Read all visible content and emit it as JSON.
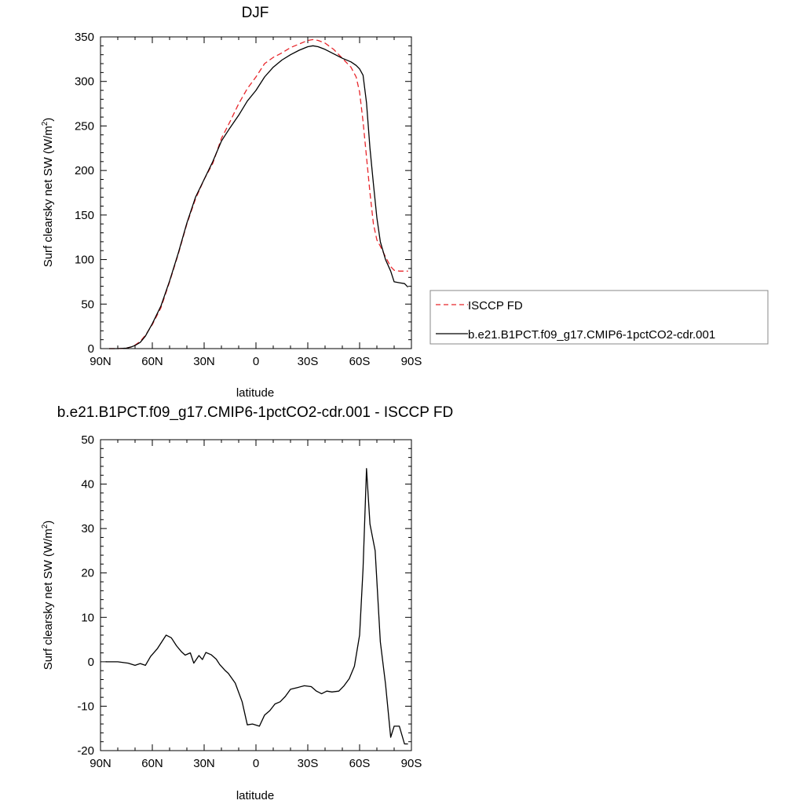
{
  "chart_data": [
    {
      "type": "line",
      "title": "DJF",
      "xlabel": "latitude",
      "ylabel": "Surf clearsky net SW (W/m",
      "ylabel_sup": "2",
      "ylabel_end": ")",
      "xlim": [
        90,
        -90
      ],
      "ylim": [
        0,
        350
      ],
      "xticks": [
        90,
        60,
        30,
        0,
        -30,
        -60,
        -90
      ],
      "xtick_labels": [
        "90N",
        "60N",
        "30N",
        "0",
        "30S",
        "60S",
        "90S"
      ],
      "yticks": [
        0,
        50,
        100,
        150,
        200,
        250,
        300,
        350
      ],
      "ytick_labels": [
        "0",
        "50",
        "100",
        "150",
        "200",
        "250",
        "300",
        "350"
      ],
      "legend": "right",
      "grid": false,
      "series": [
        {
          "name": "ISCCP FD",
          "color": "#e8262b",
          "dash": "dashed",
          "x": [
            85,
            80,
            75,
            72,
            70,
            67,
            64,
            60,
            55,
            50,
            45,
            40,
            35,
            30,
            25,
            20,
            15,
            10,
            5,
            0,
            -5,
            -10,
            -15,
            -20,
            -25,
            -30,
            -33,
            -36,
            -40,
            -45,
            -50,
            -55,
            -58,
            -60,
            -62,
            -64,
            -66,
            -68,
            -70,
            -72,
            -75,
            -78,
            -80,
            -83,
            -86,
            -88
          ],
          "y": [
            0,
            0,
            0.5,
            2,
            4,
            8,
            15,
            27,
            46,
            75,
            106,
            140,
            168,
            190,
            208,
            236,
            255,
            275,
            292,
            305,
            320,
            327,
            332,
            338,
            342,
            346,
            347,
            346,
            343,
            336,
            326,
            316,
            305,
            288,
            255,
            215,
            175,
            140,
            122,
            115,
            103,
            92,
            88,
            87,
            87,
            87
          ]
        },
        {
          "name": "b.e21.B1PCT.f09_g17.CMIP6-1pctCO2-cdr.001",
          "color": "#000000",
          "dash": "solid",
          "x": [
            85,
            80,
            75,
            72,
            70,
            67,
            64,
            60,
            55,
            50,
            45,
            40,
            35,
            30,
            25,
            20,
            15,
            10,
            5,
            0,
            -5,
            -10,
            -15,
            -20,
            -25,
            -30,
            -33,
            -36,
            -40,
            -45,
            -50,
            -55,
            -58,
            -60,
            -62,
            -64,
            -66,
            -68,
            -70,
            -72,
            -75,
            -78,
            -80,
            -83,
            -86,
            -88
          ],
          "y": [
            0,
            0,
            0.5,
            2,
            3.5,
            7,
            14,
            28,
            48,
            76,
            107,
            141,
            170,
            190,
            210,
            233,
            248,
            262,
            278,
            290,
            305,
            316,
            324,
            330,
            335,
            339,
            340,
            339,
            336,
            331,
            326,
            322,
            318,
            314,
            307,
            276,
            225,
            185,
            147,
            120,
            100,
            87,
            75,
            74,
            73,
            69
          ]
        }
      ]
    },
    {
      "type": "line",
      "title": "b.e21.B1PCT.f09_g17.CMIP6-1pctCO2-cdr.001 - ISCCP FD",
      "xlabel": "latitude",
      "ylabel": "Surf clearsky net SW (W/m",
      "ylabel_sup": "2",
      "ylabel_end": ")",
      "xlim": [
        90,
        -90
      ],
      "ylim": [
        -20,
        50
      ],
      "xticks": [
        90,
        60,
        30,
        0,
        -30,
        -60,
        -90
      ],
      "xtick_labels": [
        "90N",
        "60N",
        "30N",
        "0",
        "30S",
        "60S",
        "90S"
      ],
      "yticks": [
        -20,
        -10,
        0,
        10,
        20,
        30,
        40,
        50
      ],
      "ytick_labels": [
        "-20",
        "-10",
        "0",
        "10",
        "20",
        "30",
        "40",
        "50"
      ],
      "grid": false,
      "series": [
        {
          "color": "#000000",
          "dash": "solid",
          "x": [
            87,
            80,
            74,
            70,
            67,
            64,
            61,
            57,
            52,
            49,
            46,
            43,
            41,
            38,
            36,
            33,
            31,
            29,
            26,
            23,
            21,
            18,
            16,
            12,
            8,
            5,
            2,
            -2,
            -5,
            -8,
            -11,
            -14,
            -17,
            -20,
            -24,
            -28,
            -32,
            -35,
            -38,
            -41,
            -44,
            -48,
            -51,
            -54,
            -57,
            -60,
            -62,
            -64,
            -66,
            -69,
            -72,
            -75,
            -78,
            -80,
            -83,
            -86,
            -88
          ],
          "y": [
            0,
            0,
            -0.3,
            -0.8,
            -0.4,
            -0.8,
            1.2,
            3,
            6,
            5.4,
            3.6,
            2.2,
            1.5,
            2,
            -0.3,
            1.4,
            0.5,
            2.1,
            1.6,
            0.6,
            -0.6,
            -1.9,
            -2.6,
            -4.8,
            -9,
            -14.2,
            -14,
            -14.5,
            -12,
            -11,
            -9.5,
            -9,
            -7.8,
            -6.2,
            -5.8,
            -5.4,
            -5.6,
            -6.6,
            -7.2,
            -6.6,
            -6.8,
            -6.6,
            -5.4,
            -3.8,
            -1,
            6,
            21,
            43.5,
            31,
            25,
            4.5,
            -5,
            -17,
            -14.5,
            -14.5,
            -18.5,
            -18.5
          ]
        }
      ]
    }
  ]
}
